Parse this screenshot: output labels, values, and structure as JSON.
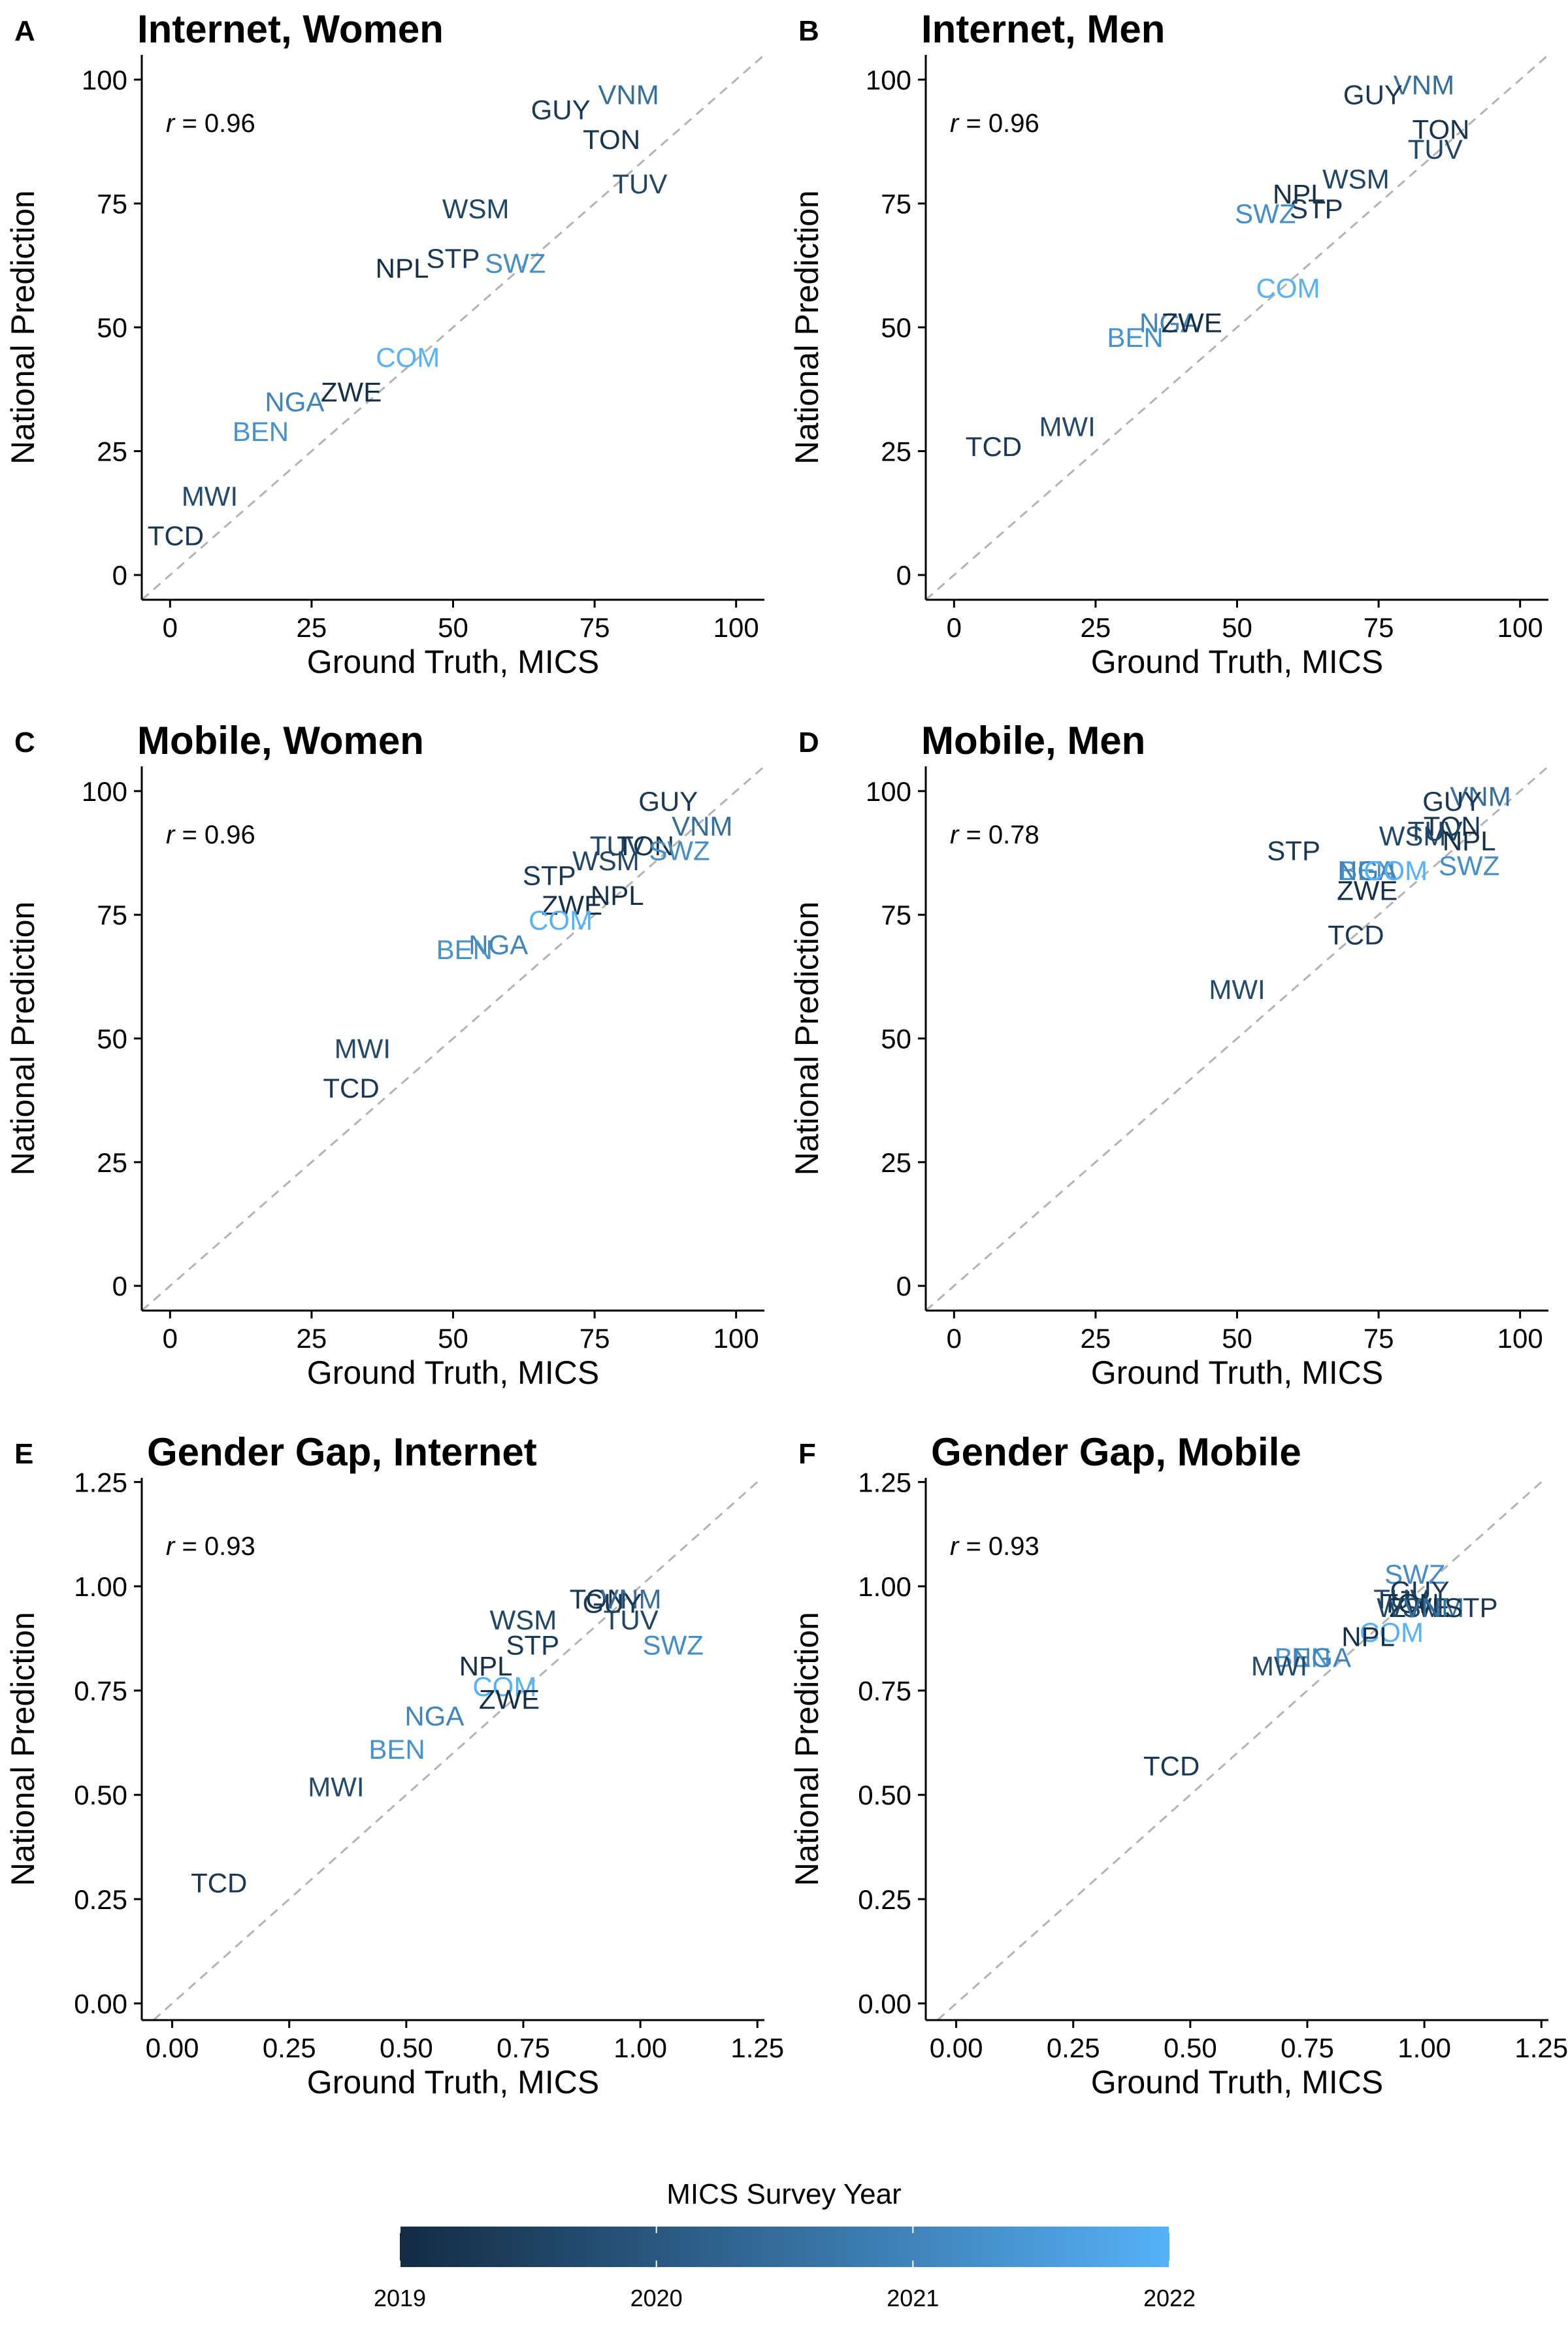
{
  "figure": {
    "legend": {
      "title": "MICS Survey Year",
      "ticks": [
        "2019",
        "2020",
        "2021",
        "2022"
      ],
      "color_low": "#132b43",
      "color_high": "#56b1f7",
      "year_range": [
        2019,
        2022
      ]
    }
  },
  "chart_data": [
    {
      "panel": "A",
      "type": "scatter",
      "title": "Internet, Women",
      "xlabel": "Ground Truth, MICS",
      "ylabel": "National Prediction",
      "xlim": [
        -5,
        105
      ],
      "ylim": [
        -5,
        105
      ],
      "xticks": [
        0,
        25,
        50,
        75,
        100
      ],
      "xtick_labels": [
        "0",
        "25",
        "50",
        "75",
        "100"
      ],
      "yticks": [
        0,
        25,
        50,
        75,
        100
      ],
      "ytick_labels": [
        "0",
        "25",
        "50",
        "75",
        "100"
      ],
      "r_label": "= 0.96",
      "points": [
        {
          "label": "VNM",
          "x": 81,
          "y": 97,
          "year": 2020.5
        },
        {
          "label": "GUY",
          "x": 69,
          "y": 94,
          "year": 2019.3
        },
        {
          "label": "TON",
          "x": 78,
          "y": 88,
          "year": 2019.2
        },
        {
          "label": "TUV",
          "x": 83,
          "y": 79,
          "year": 2019.6
        },
        {
          "label": "WSM",
          "x": 54,
          "y": 74,
          "year": 2019.6
        },
        {
          "label": "STP",
          "x": 50,
          "y": 64,
          "year": 2019.3
        },
        {
          "label": "NPL",
          "x": 41,
          "y": 62,
          "year": 2019.1
        },
        {
          "label": "SWZ",
          "x": 61,
          "y": 63,
          "year": 2021.2
        },
        {
          "label": "COM",
          "x": 42,
          "y": 44,
          "year": 2022.0
        },
        {
          "label": "ZWE",
          "x": 32,
          "y": 37,
          "year": 2019.1
        },
        {
          "label": "NGA",
          "x": 22,
          "y": 35,
          "year": 2021.0
        },
        {
          "label": "BEN",
          "x": 16,
          "y": 29,
          "year": 2021.3
        },
        {
          "label": "MWI",
          "x": 7,
          "y": 16,
          "year": 2019.7
        },
        {
          "label": "TCD",
          "x": 1,
          "y": 8,
          "year": 2019.3
        }
      ]
    },
    {
      "panel": "B",
      "type": "scatter",
      "title": "Internet, Men",
      "xlabel": "Ground Truth, MICS",
      "ylabel": "National Prediction",
      "xlim": [
        -5,
        105
      ],
      "ylim": [
        -5,
        105
      ],
      "xticks": [
        0,
        25,
        50,
        75,
        100
      ],
      "xtick_labels": [
        "0",
        "25",
        "50",
        "75",
        "100"
      ],
      "yticks": [
        0,
        25,
        50,
        75,
        100
      ],
      "ytick_labels": [
        "0",
        "25",
        "50",
        "75",
        "100"
      ],
      "r_label": "= 0.96",
      "points": [
        {
          "label": "VNM",
          "x": 83,
          "y": 99,
          "year": 2020.5
        },
        {
          "label": "GUY",
          "x": 74,
          "y": 97,
          "year": 2019.3
        },
        {
          "label": "TON",
          "x": 86,
          "y": 90,
          "year": 2019.2
        },
        {
          "label": "TUV",
          "x": 85,
          "y": 86,
          "year": 2019.6
        },
        {
          "label": "WSM",
          "x": 71,
          "y": 80,
          "year": 2019.6
        },
        {
          "label": "NPL",
          "x": 61,
          "y": 77,
          "year": 2019.1
        },
        {
          "label": "STP",
          "x": 64,
          "y": 74,
          "year": 2019.3
        },
        {
          "label": "SWZ",
          "x": 55,
          "y": 73,
          "year": 2021.2
        },
        {
          "label": "COM",
          "x": 59,
          "y": 58,
          "year": 2022.0
        },
        {
          "label": "NGA",
          "x": 38,
          "y": 51,
          "year": 2021.0
        },
        {
          "label": "ZWE",
          "x": 42,
          "y": 51,
          "year": 2019.1
        },
        {
          "label": "BEN",
          "x": 32,
          "y": 48,
          "year": 2021.3
        },
        {
          "label": "MWI",
          "x": 20,
          "y": 30,
          "year": 2019.7
        },
        {
          "label": "TCD",
          "x": 7,
          "y": 26,
          "year": 2019.3
        }
      ]
    },
    {
      "panel": "C",
      "type": "scatter",
      "title": "Mobile, Women",
      "xlabel": "Ground Truth, MICS",
      "ylabel": "National Prediction",
      "xlim": [
        -5,
        105
      ],
      "ylim": [
        -5,
        105
      ],
      "xticks": [
        0,
        25,
        50,
        75,
        100
      ],
      "xtick_labels": [
        "0",
        "25",
        "50",
        "75",
        "100"
      ],
      "yticks": [
        0,
        25,
        50,
        75,
        100
      ],
      "ytick_labels": [
        "0",
        "25",
        "50",
        "75",
        "100"
      ],
      "r_label": "= 0.96",
      "points": [
        {
          "label": "GUY",
          "x": 88,
          "y": 98,
          "year": 2019.3
        },
        {
          "label": "VNM",
          "x": 94,
          "y": 93,
          "year": 2020.5
        },
        {
          "label": "TUV",
          "x": 79,
          "y": 89,
          "year": 2019.6
        },
        {
          "label": "TON",
          "x": 84,
          "y": 89,
          "year": 2019.2
        },
        {
          "label": "SWZ",
          "x": 90,
          "y": 88,
          "year": 2021.2
        },
        {
          "label": "WSM",
          "x": 77,
          "y": 86,
          "year": 2019.6
        },
        {
          "label": "STP",
          "x": 67,
          "y": 83,
          "year": 2019.3
        },
        {
          "label": "NPL",
          "x": 79,
          "y": 79,
          "year": 2019.1
        },
        {
          "label": "ZWE",
          "x": 71,
          "y": 77,
          "year": 2019.1
        },
        {
          "label": "COM",
          "x": 69,
          "y": 74,
          "year": 2022.0
        },
        {
          "label": "NGA",
          "x": 58,
          "y": 69,
          "year": 2021.0
        },
        {
          "label": "BEN",
          "x": 52,
          "y": 68,
          "year": 2021.3
        },
        {
          "label": "MWI",
          "x": 34,
          "y": 48,
          "year": 2019.7
        },
        {
          "label": "TCD",
          "x": 32,
          "y": 40,
          "year": 2019.3
        }
      ]
    },
    {
      "panel": "D",
      "type": "scatter",
      "title": "Mobile, Men",
      "xlabel": "Ground Truth, MICS",
      "ylabel": "National Prediction",
      "xlim": [
        -5,
        105
      ],
      "ylim": [
        -5,
        105
      ],
      "xticks": [
        0,
        25,
        50,
        75,
        100
      ],
      "xtick_labels": [
        "0",
        "25",
        "50",
        "75",
        "100"
      ],
      "yticks": [
        0,
        25,
        50,
        75,
        100
      ],
      "ytick_labels": [
        "0",
        "25",
        "50",
        "75",
        "100"
      ],
      "r_label": "= 0.78",
      "points": [
        {
          "label": "VNM",
          "x": 93,
          "y": 99,
          "year": 2020.5
        },
        {
          "label": "GUY",
          "x": 88,
          "y": 98,
          "year": 2019.3
        },
        {
          "label": "TON",
          "x": 88,
          "y": 93,
          "year": 2019.2
        },
        {
          "label": "TUV",
          "x": 85,
          "y": 92,
          "year": 2019.6
        },
        {
          "label": "WSM",
          "x": 81,
          "y": 91,
          "year": 2019.6
        },
        {
          "label": "NPL",
          "x": 91,
          "y": 90,
          "year": 2019.1
        },
        {
          "label": "STP",
          "x": 60,
          "y": 88,
          "year": 2019.3
        },
        {
          "label": "SWZ",
          "x": 91,
          "y": 85,
          "year": 2021.2
        },
        {
          "label": "BEN",
          "x": 73,
          "y": 84,
          "year": 2021.3
        },
        {
          "label": "NGA",
          "x": 73,
          "y": 84,
          "year": 2021.0
        },
        {
          "label": "COM",
          "x": 78,
          "y": 84,
          "year": 2022.0
        },
        {
          "label": "ZWE",
          "x": 73,
          "y": 80,
          "year": 2019.1
        },
        {
          "label": "TCD",
          "x": 71,
          "y": 71,
          "year": 2019.3
        },
        {
          "label": "MWI",
          "x": 50,
          "y": 60,
          "year": 2019.7
        }
      ]
    },
    {
      "panel": "E",
      "type": "scatter",
      "title": "Gender Gap, Internet",
      "xlabel": "Ground Truth, MICS",
      "ylabel": "National Prediction",
      "xlim": [
        -0.065,
        1.265
      ],
      "ylim": [
        -0.04,
        1.26
      ],
      "xticks": [
        0,
        0.25,
        0.5,
        0.75,
        1.0,
        1.25
      ],
      "xtick_labels": [
        "0.00",
        "0.25",
        "0.50",
        "0.75",
        "1.00",
        "1.25"
      ],
      "yticks": [
        0,
        0.25,
        0.5,
        0.75,
        1.0,
        1.25
      ],
      "ytick_labels": [
        "0.00",
        "0.25",
        "0.50",
        "0.75",
        "1.00",
        "1.25"
      ],
      "r_label": "= 0.93",
      "points": [
        {
          "label": "TON",
          "x": 0.91,
          "y": 0.97,
          "year": 2019.2
        },
        {
          "label": "VNM",
          "x": 0.98,
          "y": 0.97,
          "year": 2020.5
        },
        {
          "label": "GUY",
          "x": 0.94,
          "y": 0.96,
          "year": 2019.3
        },
        {
          "label": "TUV",
          "x": 0.98,
          "y": 0.92,
          "year": 2019.6
        },
        {
          "label": "WSM",
          "x": 0.75,
          "y": 0.92,
          "year": 2019.6
        },
        {
          "label": "STP",
          "x": 0.77,
          "y": 0.86,
          "year": 2019.3
        },
        {
          "label": "SWZ",
          "x": 1.07,
          "y": 0.86,
          "year": 2021.2
        },
        {
          "label": "NPL",
          "x": 0.67,
          "y": 0.81,
          "year": 2019.1
        },
        {
          "label": "COM",
          "x": 0.71,
          "y": 0.76,
          "year": 2022.0
        },
        {
          "label": "ZWE",
          "x": 0.72,
          "y": 0.73,
          "year": 2019.1
        },
        {
          "label": "NGA",
          "x": 0.56,
          "y": 0.69,
          "year": 2021.0
        },
        {
          "label": "BEN",
          "x": 0.48,
          "y": 0.61,
          "year": 2021.3
        },
        {
          "label": "MWI",
          "x": 0.35,
          "y": 0.52,
          "year": 2019.7
        },
        {
          "label": "TCD",
          "x": 0.1,
          "y": 0.29,
          "year": 2019.3
        }
      ]
    },
    {
      "panel": "F",
      "type": "scatter",
      "title": "Gender Gap, Mobile",
      "xlabel": "Ground Truth, MICS",
      "ylabel": "National Prediction",
      "xlim": [
        -0.065,
        1.265
      ],
      "ylim": [
        -0.04,
        1.26
      ],
      "xticks": [
        0,
        0.25,
        0.5,
        0.75,
        1.0,
        1.25
      ],
      "xtick_labels": [
        "0.00",
        "0.25",
        "0.50",
        "0.75",
        "1.00",
        "1.25"
      ],
      "yticks": [
        0,
        0.25,
        0.5,
        0.75,
        1.0,
        1.25
      ],
      "ytick_labels": [
        "0.00",
        "0.25",
        "0.50",
        "0.75",
        "1.00",
        "1.25"
      ],
      "r_label": "= 0.93",
      "points": [
        {
          "label": "SWZ",
          "x": 0.98,
          "y": 1.03,
          "year": 2021.2
        },
        {
          "label": "GUY",
          "x": 0.99,
          "y": 0.99,
          "year": 2019.3
        },
        {
          "label": "TUV",
          "x": 0.95,
          "y": 0.97,
          "year": 2019.6
        },
        {
          "label": "TON",
          "x": 0.97,
          "y": 0.96,
          "year": 2019.2
        },
        {
          "label": "ZWE",
          "x": 0.99,
          "y": 0.95,
          "year": 2019.1
        },
        {
          "label": "WSM",
          "x": 0.97,
          "y": 0.95,
          "year": 2019.6
        },
        {
          "label": "VNM",
          "x": 1.02,
          "y": 0.95,
          "year": 2020.5
        },
        {
          "label": "STP",
          "x": 1.1,
          "y": 0.95,
          "year": 2019.3
        },
        {
          "label": "COM",
          "x": 0.93,
          "y": 0.89,
          "year": 2022.0
        },
        {
          "label": "NPL",
          "x": 0.88,
          "y": 0.88,
          "year": 2019.1
        },
        {
          "label": "BEN",
          "x": 0.74,
          "y": 0.83,
          "year": 2021.3
        },
        {
          "label": "NGA",
          "x": 0.78,
          "y": 0.83,
          "year": 2021.0
        },
        {
          "label": "MWI",
          "x": 0.69,
          "y": 0.81,
          "year": 2019.7
        },
        {
          "label": "TCD",
          "x": 0.46,
          "y": 0.57,
          "year": 2019.3
        }
      ]
    }
  ]
}
